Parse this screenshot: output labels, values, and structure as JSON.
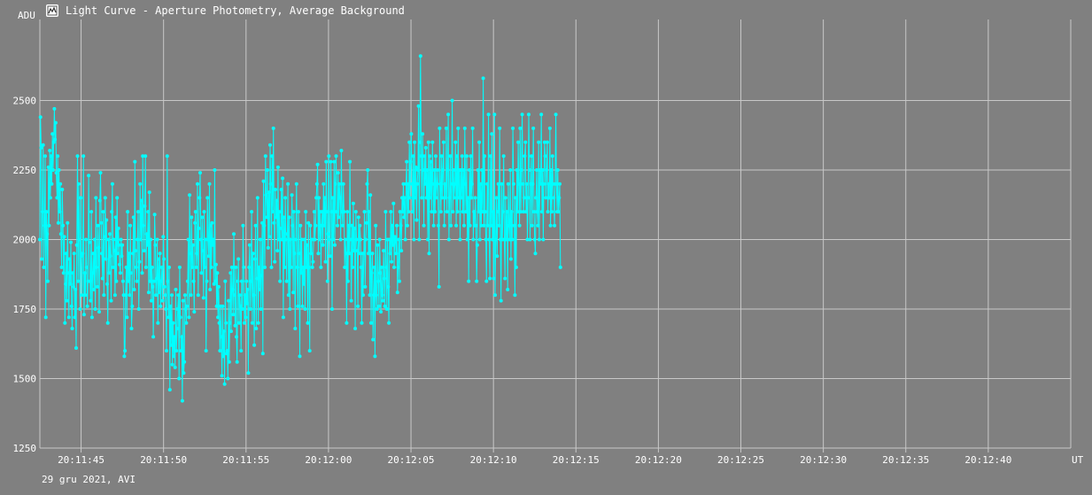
{
  "window": {
    "title": "Light Curve - Aperture Photometry, Average Background",
    "icon": "chart-app-icon"
  },
  "footer": {
    "caption": "29 gru 2021, AVI"
  },
  "colors": {
    "background": "#808080",
    "grid": "#c8c8c8",
    "series": "#00ffff",
    "text": "#ffffff"
  },
  "chart_data": {
    "type": "line",
    "ylabel": "ADU",
    "xlabel": "UT",
    "ylim": [
      1250,
      2750
    ],
    "yticks": [
      1250,
      1500,
      1750,
      2000,
      2250,
      2500
    ],
    "x_range_seconds": [
      42.5,
      105.0
    ],
    "xticks": [
      {
        "s": 45,
        "label": "20:11:45"
      },
      {
        "s": 50,
        "label": "20:11:50"
      },
      {
        "s": 55,
        "label": "20:11:55"
      },
      {
        "s": 60,
        "label": "20:12:00"
      },
      {
        "s": 65,
        "label": "20:12:05"
      },
      {
        "s": 70,
        "label": "20:12:10"
      },
      {
        "s": 75,
        "label": "20:12:15"
      },
      {
        "s": 80,
        "label": "20:12:20"
      },
      {
        "s": 85,
        "label": "20:12:25"
      },
      {
        "s": 90,
        "label": "20:12:30"
      },
      {
        "s": 95,
        "label": "20:12:35"
      },
      {
        "s": 100,
        "label": "20:12:40"
      }
    ],
    "grid": true,
    "series": [
      {
        "color": "#00ffff",
        "x_start_s": 42.5,
        "x_step_s": 0.04,
        "values": [
          2000,
          2440,
          2330,
          1930,
          2100,
          2340,
          1900,
          2050,
          2300,
          1720,
          2100,
          2020,
          1850,
          2260,
          2050,
          2320,
          2150,
          2300,
          2200,
          2380,
          2250,
          2350,
          2470,
          2360,
          2420,
          2240,
          2150,
          2300,
          2060,
          2250,
          2100,
          2200,
          2020,
          1900,
          2180,
          2050,
          1880,
          2010,
          1700,
          1840,
          1950,
          1780,
          2060,
          1880,
          1720,
          1930,
          1840,
          1990,
          1760,
          1680,
          1880,
          1830,
          1950,
          1720,
          1820,
          1610,
          1980,
          2300,
          1850,
          2200,
          2000,
          1750,
          2150,
          1940,
          1800,
          1950,
          2300,
          1730,
          1880,
          1800,
          2000,
          1900,
          1760,
          1850,
          2230,
          1990,
          1850,
          1780,
          2100,
          1720,
          1880,
          1950,
          1820,
          2000,
          1750,
          2150,
          1900,
          1830,
          2050,
          1970,
          1740,
          2140,
          2240,
          2060,
          1950,
          1860,
          2100,
          1800,
          2010,
          2150,
          1930,
          2070,
          1840,
          1700,
          2000,
          1880,
          2020,
          1940,
          1780,
          2100,
          2200,
          1900,
          2000,
          1960,
          1800,
          2080,
          1850,
          2150,
          1950,
          2040,
          1980,
          1910,
          1880,
          2000,
          1940,
          1980,
          1850,
          1800,
          1580,
          1600,
          1800,
          1900,
          1720,
          2100,
          1850,
          1950,
          1800,
          2050,
          1880,
          1680,
          1760,
          1950,
          2080,
          1820,
          2280,
          1960,
          1900,
          1850,
          2000,
          2100,
          1750,
          1920,
          2200,
          2000,
          2140,
          1880,
          2300,
          2050,
          1960,
          2120,
          2300,
          1900,
          2020,
          1980,
          2100,
          1810,
          2170,
          1850,
          2000,
          1780,
          1900,
          1830,
          1650,
          1850,
          2090,
          1980,
          1800,
          1860,
          2000,
          1700,
          1930,
          1810,
          1950,
          1760,
          1850,
          1900,
          1780,
          2010,
          1930,
          1830,
          1800,
          1750,
          1600,
          2300,
          1850,
          1720,
          1900,
          1460,
          1760,
          1620,
          1800,
          1550,
          1700,
          1580,
          1650,
          1540,
          1820,
          1600,
          1680,
          1750,
          1800,
          1500,
          1900,
          1720,
          1600,
          1650,
          1420,
          1780,
          1520,
          1560,
          1800,
          1750,
          1700,
          1760,
          1850,
          2000,
          1720,
          2160,
          1950,
          1800,
          2080,
          1900,
          1980,
          1850,
          1740,
          2060,
          2100,
          1900,
          1950,
          2200,
          1800,
          2040,
          2150,
          2240,
          2000,
          1880,
          2080,
          1960,
          1790,
          2100,
          1900,
          2000,
          1600,
          1850,
          2150,
          2000,
          1940,
          2200,
          1820,
          2050,
          1900,
          2060,
          1980,
          2000,
          1840,
          2250,
          1850,
          1910,
          1760,
          1880,
          1720,
          1830,
          1700,
          1600,
          1760,
          1650,
          1510,
          1760,
          1580,
          1670,
          1480,
          1850,
          1700,
          1590,
          1600,
          1500,
          1780,
          1560,
          1700,
          1880,
          1670,
          1900,
          1820,
          1730,
          2020,
          1800,
          1690,
          1900,
          1650,
          1560,
          1850,
          1930,
          1700,
          1800,
          1760,
          1600,
          1850,
          1750,
          2050,
          1900,
          1700,
          1800,
          1720,
          1850,
          1770,
          1820,
          1520,
          1900,
          1980,
          1750,
          1850,
          2100,
          1700,
          1950,
          1800,
          1620,
          1930,
          2050,
          1680,
          1860,
          2150,
          1700,
          1900,
          1820,
          2000,
          1750,
          1870,
          2060,
          1590,
          2210,
          2050,
          1900,
          2300,
          2160,
          2080,
          2250,
          1970,
          2170,
          2010,
          2340,
          2200,
          1900,
          2300,
          2100,
          2400,
          2060,
          1920,
          2180,
          2080,
          2140,
          1960,
          2260,
          2000,
          2100,
          1850,
          2040,
          2180,
          2000,
          2220,
          1720,
          2080,
          1900,
          2150,
          2000,
          1850,
          2020,
          2200,
          1800,
          2080,
          1750,
          2000,
          1900,
          2160,
          2050,
          1810,
          2100,
          1950,
          1680,
          2000,
          2200,
          1900,
          1760,
          2100,
          1950,
          1580,
          2050,
          1880,
          2000,
          1760,
          1900,
          1840,
          2000,
          1750,
          2100,
          1900,
          1980,
          1700,
          2060,
          1900,
          1600,
          2050,
          1950,
          2000,
          1900,
          1920,
          2000,
          2100,
          2000,
          2050,
          2150,
          2200,
          2270,
          1950,
          2150,
          2000,
          2100,
          1900,
          2050,
          2100,
          1980,
          2200,
          2050,
          2150,
          1920,
          2280,
          2100,
          1850,
          2020,
          2300,
          2000,
          1940,
          2280,
          2100,
          1750,
          2150,
          2000,
          2280,
          1980,
          2200,
          2300,
          2100,
          2050,
          2240,
          2080,
          2200,
          2150,
          2000,
          2320,
          2100,
          2050,
          2200,
          2100,
          1900,
          2000,
          1950,
          1700,
          2100,
          1850,
          2050,
          1950,
          2280,
          2000,
          1780,
          2050,
          1900,
          2130,
          1960,
          2040,
          1680,
          2100,
          2000,
          1960,
          1760,
          2080,
          1950,
          2050,
          2000,
          1900,
          1700,
          1950,
          1800,
          1950,
          2100,
          1830,
          2000,
          2060,
          2200,
          2250,
          1950,
          2100,
          1800,
          2160,
          1700,
          1880,
          1950,
          1640,
          1800,
          1900,
          1580,
          2050,
          1800,
          1750,
          1980,
          1850,
          1760,
          2000,
          1880,
          1740,
          1900,
          1800,
          1780,
          1960,
          1860,
          1760,
          2100,
          1900,
          1750,
          2000,
          1830,
          1700,
          2000,
          1950,
          2100,
          1920,
          2050,
          1980,
          2130,
          1900,
          2010,
          2000,
          1950,
          2050,
          1810,
          1900,
          2000,
          1850,
          2100,
          2050,
          1960,
          2150,
          2100,
          2200,
          2080,
          2150,
          2000,
          2200,
          2280,
          2050,
          2200,
          2100,
          2350,
          2150,
          2280,
          2380,
          2200,
          2100,
          2300,
          2000,
          2350,
          2150,
          2260,
          2070,
          2200,
          2250,
          2480,
          2000,
          2350,
          2660,
          2300,
          2150,
          2380,
          2250,
          2050,
          2300,
          2200,
          2330,
          2150,
          2250,
          2000,
          2350,
          1950,
          2300,
          2150,
          2280,
          2100,
          2350,
          2200,
          2050,
          2250,
          2100,
          2300,
          2150,
          2200,
          2250,
          2050,
          1830,
          2400,
          2200,
          2100,
          2300,
          2150,
          2250,
          2350,
          2050,
          2200,
          2150,
          2400,
          2100,
          2250,
          2450,
          2000,
          2150,
          2300,
          2050,
          2200,
          2500,
          2100,
          2250,
          2150,
          2200,
          2350,
          2050,
          2300,
          2100,
          2400,
          2150,
          2250,
          2000,
          2250,
          2150,
          2300,
          2100,
          2250,
          2050,
          2400,
          2200,
          2100,
          2300,
          2000,
          2150,
          1850,
          2250,
          2050,
          2300,
          2150,
          2200,
          2400,
          2000,
          2100,
          2050,
          2150,
          2050,
          1850,
          1980,
          2250,
          2100,
          2350,
          2000,
          2200,
          2050,
          2250,
          2100,
          2580,
          2050,
          2300,
          2100,
          2000,
          1850,
          2200,
          2050,
          2450,
          2000,
          1860,
          2300,
          2050,
          2380,
          2000,
          2100,
          1860,
          2450,
          1800,
          2000,
          2150,
          1940,
          2100,
          2200,
          2050,
          2400,
          2000,
          1780,
          2200,
          2000,
          2100,
          2300,
          2000,
          1860,
          2150,
          2000,
          2100,
          1820,
          2200,
          2050,
          2000,
          2250,
          1930,
          2100,
          2000,
          2400,
          2200,
          2050,
          1800,
          2150,
          1900,
          2250,
          2100,
          2350,
          2200,
          2050,
          2400,
          2100,
          2250,
          2450,
          2200,
          2100,
          2150,
          2300,
          2350,
          2100,
          2200,
          2000,
          2150,
          2450,
          2250,
          2000,
          2200,
          2300,
          2050,
          2200,
          2400,
          2100,
          2000,
          1950,
          2150,
          2250,
          2100,
          2050,
          2350,
          2000,
          2250,
          2200,
          2450,
          2100,
          2250,
          2000,
          2200,
          2350,
          2300,
          2150,
          2250,
          2350,
          2100,
          2200,
          2150,
          2400,
          2050,
          2250,
          2100,
          2300,
          2200,
          2150,
          2050,
          2200,
          2450,
          2200,
          2100,
          2250,
          2100,
          2150,
          2200,
          1900
        ]
      }
    ]
  }
}
